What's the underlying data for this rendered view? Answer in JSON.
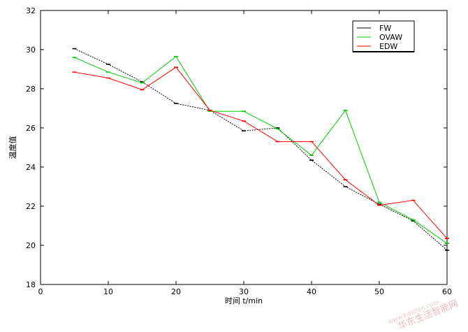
{
  "chart_data": {
    "type": "line",
    "xlabel": "时间 t/min",
    "ylabel": "温度值",
    "xlim": [
      0,
      60
    ],
    "ylim": [
      18,
      32
    ],
    "xticks": [
      0,
      10,
      20,
      30,
      40,
      50,
      60
    ],
    "yticks": [
      18,
      20,
      22,
      24,
      26,
      28,
      30,
      32
    ],
    "grid": false,
    "legend_position": "top-right",
    "x": [
      5,
      10,
      15,
      20,
      25,
      30,
      35,
      40,
      45,
      50,
      55,
      60
    ],
    "series": [
      {
        "name": "FW",
        "color": "#000000",
        "values": [
          30.05,
          29.25,
          28.35,
          27.25,
          26.9,
          25.85,
          26.0,
          24.35,
          23.0,
          22.1,
          21.25,
          19.75
        ]
      },
      {
        "name": "OVAW",
        "color": "#00cc00",
        "values": [
          29.6,
          28.85,
          28.3,
          29.65,
          26.85,
          26.85,
          25.95,
          24.6,
          26.9,
          22.2,
          21.3,
          20.1
        ]
      },
      {
        "name": "EDW",
        "color": "#ff0000",
        "values": [
          28.85,
          28.55,
          27.95,
          29.1,
          26.9,
          26.35,
          25.3,
          25.3,
          23.35,
          22.05,
          22.3,
          20.35
        ]
      }
    ]
  },
  "watermark": {
    "text": "华东生活智能网",
    "subtext": "www.hdshzn.com"
  }
}
